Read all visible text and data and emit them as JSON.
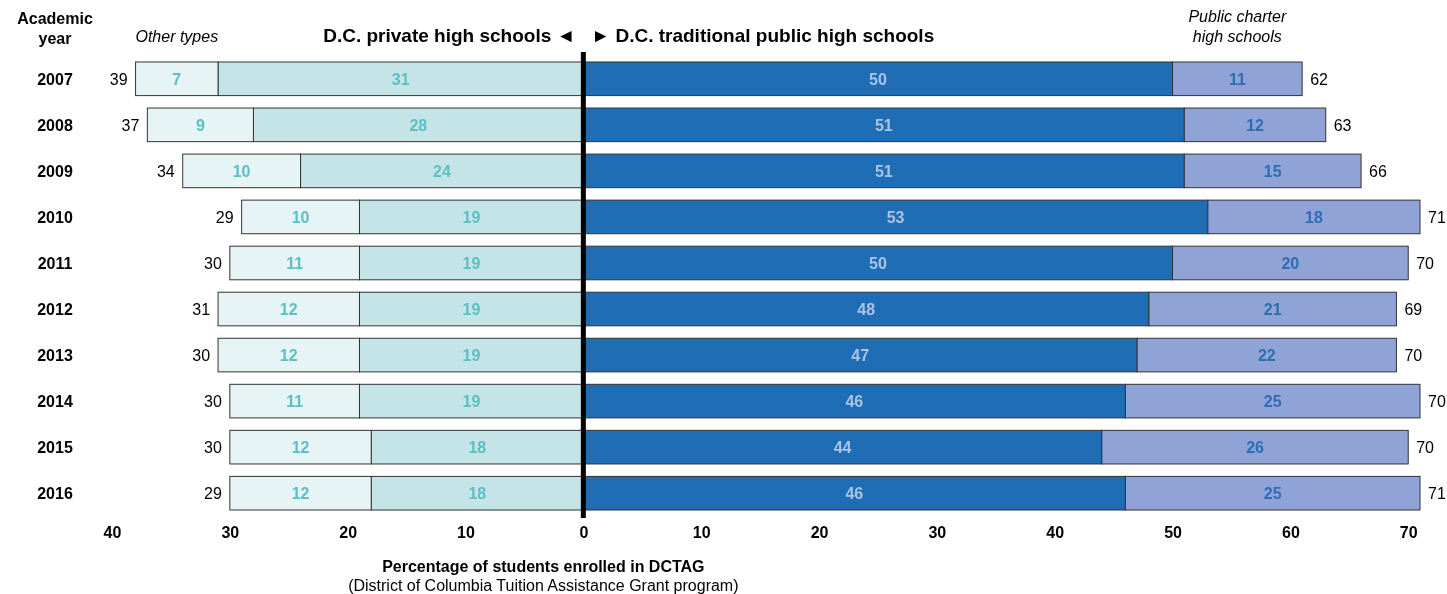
{
  "chart_data": {
    "type": "bar",
    "orientation": "horizontal",
    "ylabel": "Academic\nyear",
    "xlabel": "Percentage of students enrolled in DCTAG",
    "categories": [
      "2007",
      "2008",
      "2009",
      "2010",
      "2011",
      "2012",
      "2013",
      "2014",
      "2015",
      "2016"
    ],
    "series": [
      {
        "name": "D.C. private high schools ◄",
        "color": "#c5e4e7",
        "values": [
          31,
          28,
          24,
          19,
          19,
          19,
          19,
          19,
          18,
          18
        ],
        "base": [
          -31,
          -28,
          -24,
          -19,
          -19,
          -19,
          -19,
          -19,
          -18,
          -18
        ],
        "value_labels": [
          "31",
          "28",
          "24",
          "19",
          "19",
          "19",
          "19",
          "19",
          "18",
          "18"
        ]
      },
      {
        "name": "Other types",
        "color": "#e6f4f5",
        "values": [
          7,
          9,
          10,
          10,
          11,
          12,
          12,
          11,
          12,
          12
        ],
        "base": [
          -38,
          -37,
          -34,
          -29,
          -30,
          -31,
          -31,
          -30,
          -30,
          -30
        ],
        "value_labels": [
          "7",
          "9",
          "10",
          "10",
          "11",
          "12",
          "12",
          "11",
          "12",
          "12"
        ]
      },
      {
        "name": "► D.C. traditional public high schools",
        "color": "#1f6db5",
        "values": [
          50,
          51,
          51,
          53,
          50,
          48,
          47,
          46,
          44,
          46
        ],
        "base": [
          0,
          0,
          0,
          0,
          0,
          0,
          0,
          0,
          0,
          0
        ],
        "value_labels": [
          "50",
          "51",
          "51",
          "53",
          "50",
          "48",
          "47",
          "46",
          "44",
          "46"
        ]
      },
      {
        "name": "Public charter\nhigh schools",
        "color": "#8fa3d6",
        "values": [
          11,
          12,
          15,
          18,
          20,
          21,
          22,
          25,
          26,
          25
        ],
        "base": [
          50,
          51,
          51,
          53,
          50,
          48,
          47,
          46,
          44,
          46
        ],
        "value_labels": [
          "11",
          "12",
          "15",
          "18",
          "20",
          "21",
          "22",
          "25",
          "26",
          "25"
        ]
      }
    ],
    "xlim": [
      -40,
      71
    ],
    "xticks": [
      {
        "value": -40,
        "label": "40"
      },
      {
        "value": -30,
        "label": "30"
      },
      {
        "value": -20,
        "label": "20"
      },
      {
        "value": -10,
        "label": "10"
      },
      0,
      10,
      20,
      30,
      40,
      50,
      60,
      70
    ],
    "ref_lines": [
      {
        "axis": "x",
        "value": 0,
        "color": "#000000"
      }
    ],
    "annotations": [
      {
        "text": "39",
        "x": -38,
        "y": "2007"
      },
      {
        "text": "37",
        "x": -37,
        "y": "2008"
      },
      {
        "text": "34",
        "x": -34,
        "y": "2009"
      },
      {
        "text": "29",
        "x": -29,
        "y": "2010"
      },
      {
        "text": "30",
        "x": -30,
        "y": "2011"
      },
      {
        "text": "31",
        "x": -31,
        "y": "2012"
      },
      {
        "text": "30",
        "x": -31,
        "y": "2013"
      },
      {
        "text": "30",
        "x": -30,
        "y": "2014"
      },
      {
        "text": "30",
        "x": -30,
        "y": "2015"
      },
      {
        "text": "29",
        "x": -30,
        "y": "2016"
      },
      {
        "text": "62",
        "x": 61,
        "y": "2007"
      },
      {
        "text": "63",
        "x": 63,
        "y": "2008"
      },
      {
        "text": "66",
        "x": 66,
        "y": "2009"
      },
      {
        "text": "71",
        "x": 71,
        "y": "2010"
      },
      {
        "text": "70",
        "x": 70,
        "y": "2011"
      },
      {
        "text": "69",
        "x": 69,
        "y": "2012"
      },
      {
        "text": "70",
        "x": 69,
        "y": "2013"
      },
      {
        "text": "70",
        "x": 71,
        "y": "2014"
      },
      {
        "text": "70",
        "x": 70,
        "y": "2015"
      },
      {
        "text": "71",
        "x": 71,
        "y": "2016"
      },
      "(District of Columbia Tuition Assistance Grant program)"
    ]
  }
}
